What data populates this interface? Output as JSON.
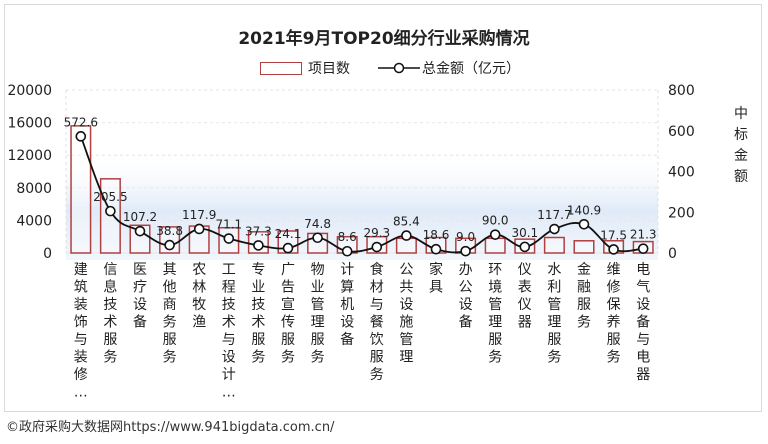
{
  "source": "©政府采购大数据网https://www.941bigdata.com.cn/",
  "chart_data": {
    "type": "bar+line",
    "title": "2021年9月TOP20细分行业采购情况",
    "legend": {
      "bar_label": "项目数",
      "line_label": "总金额（亿元）",
      "placement": "top"
    },
    "y_left": {
      "ticks": [
        0,
        4000,
        8000,
        12000,
        16000,
        20000
      ],
      "range": [
        0,
        20000
      ]
    },
    "y_right": {
      "label": "中标金额",
      "ticks": [
        0,
        200,
        400,
        600,
        800
      ],
      "range": [
        0,
        800
      ]
    },
    "categories": [
      "建筑装饰与装修…",
      "信息技术服务",
      "医疗设备",
      "其他商务服务",
      "农林牧渔",
      "工程技术与设计…",
      "专业技术服务",
      "广告宣传服务",
      "物业管理服务",
      "计算机设备",
      "食材与餐饮服务",
      "公共设施管理",
      "家具",
      "办公设备",
      "环境管理服务",
      "仪表仪器",
      "水利管理服务",
      "金融服务",
      "维修保养服务",
      "电气设备与电器"
    ],
    "series": [
      {
        "name": "项目数",
        "kind": "bar",
        "values": [
          15600,
          9100,
          3400,
          3200,
          3300,
          3100,
          2600,
          2700,
          2400,
          2000,
          2000,
          1800,
          1900,
          1800,
          1800,
          1700,
          1900,
          1500,
          1500,
          1400
        ]
      },
      {
        "name": "总金额（亿元）",
        "kind": "line",
        "axis": "right",
        "values": [
          572.6,
          205.5,
          107.2,
          38.8,
          117.9,
          71.1,
          37.3,
          24.1,
          74.8,
          8.6,
          29.3,
          85.4,
          18.6,
          9.0,
          90.0,
          30.1,
          117.7,
          140.9,
          17.5,
          21.3
        ],
        "labels": [
          "572.6",
          "205.5",
          "107.2",
          "38.8",
          "117.9",
          "71.1",
          "37.3",
          "24.1",
          "74.8",
          "8.6",
          "29.3",
          "85.4",
          "18.6",
          "9.0",
          "90.0",
          "30.1",
          "117.7",
          "140.9",
          "17.5",
          "21.3"
        ]
      }
    ],
    "colors": {
      "bar_fill": "#ffffff",
      "bar_stroke": "#b04040",
      "line": "#111111",
      "marker_fill": "#ffffff",
      "gradient_band": "#dce8f7"
    }
  }
}
